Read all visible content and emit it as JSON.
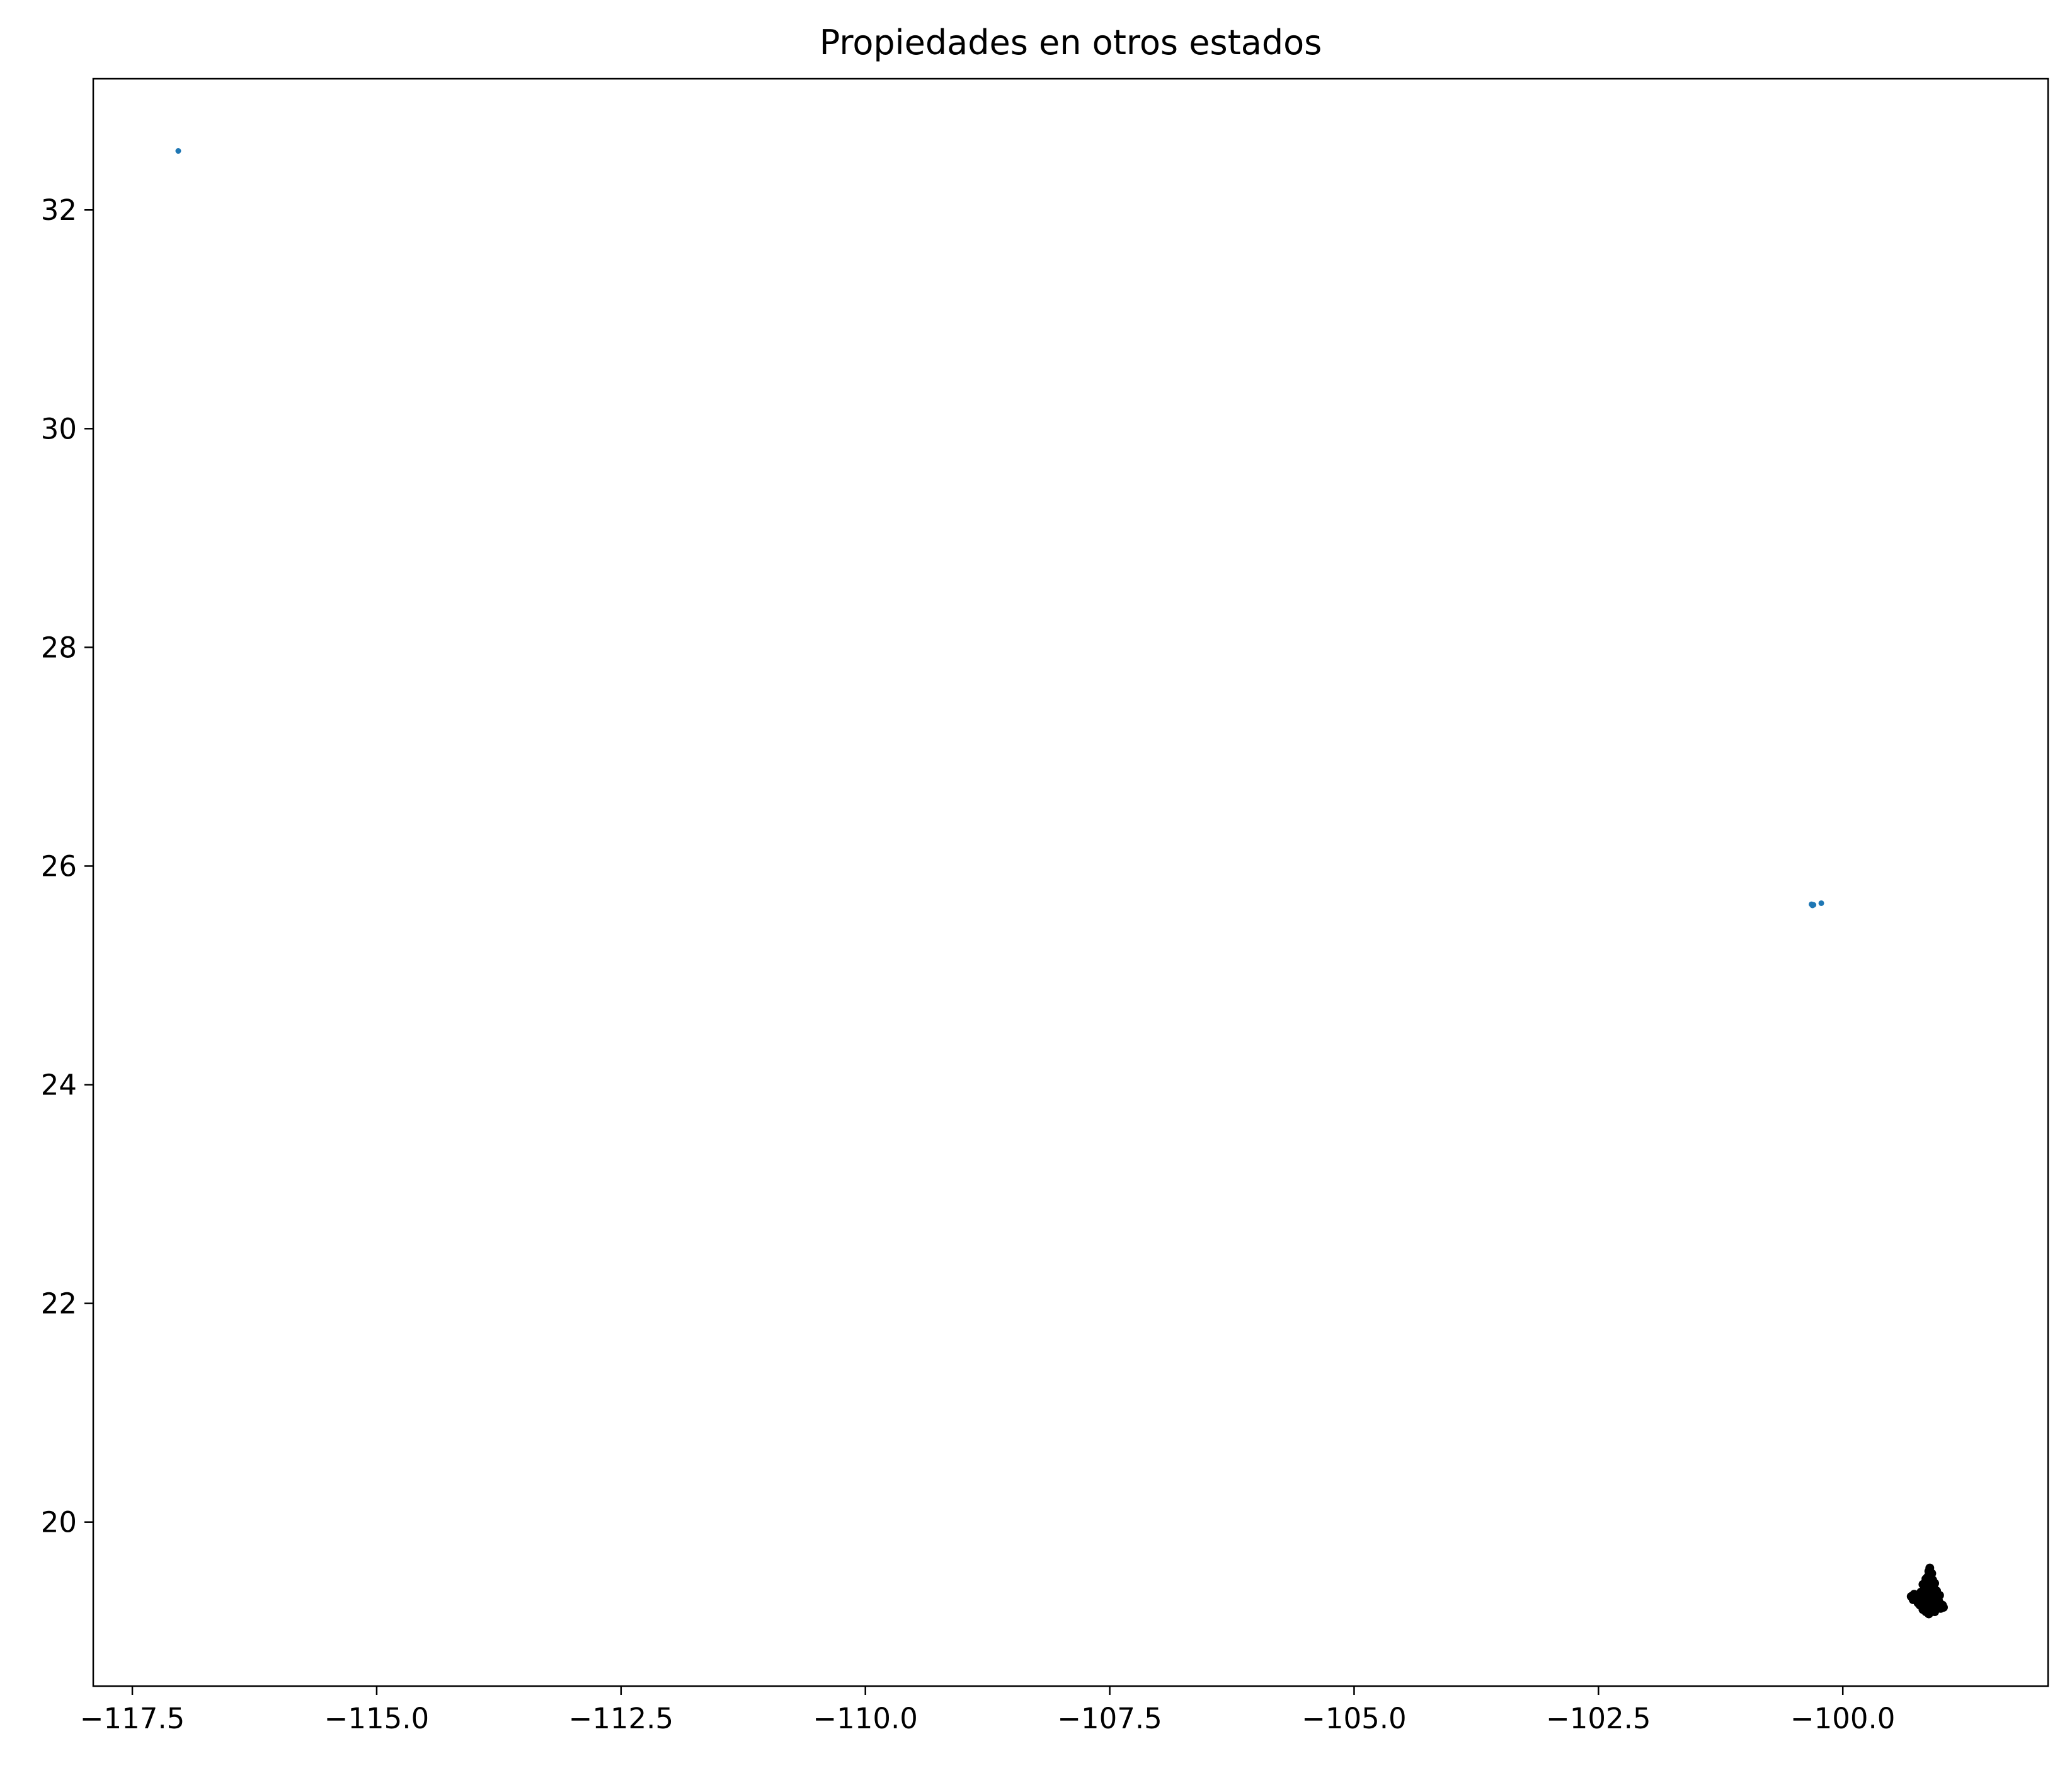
{
  "chart_data": {
    "type": "scatter",
    "title": "Propiedades en otros estados",
    "xlabel": "",
    "ylabel": "",
    "xlim": [
      -117.9,
      -97.9
    ],
    "ylim": [
      18.5,
      33.2
    ],
    "x_ticks": [
      -117.5,
      -115.0,
      -112.5,
      -110.0,
      -107.5,
      -105.0,
      -102.5,
      -100.0
    ],
    "x_tick_labels": [
      "−117.5",
      "−115.0",
      "−112.5",
      "−110.0",
      "−107.5",
      "−105.0",
      "−102.5",
      "−100.0"
    ],
    "y_ticks": [
      20,
      22,
      24,
      26,
      28,
      30,
      32
    ],
    "y_tick_labels": [
      "20",
      "22",
      "24",
      "26",
      "28",
      "30",
      "32"
    ],
    "grid": false,
    "series": [
      {
        "color": "#1f77b4",
        "points": [
          {
            "x": -117.03,
            "y": 32.54
          },
          {
            "x": -100.32,
            "y": 25.65
          },
          {
            "x": -100.31,
            "y": 25.64
          },
          {
            "x": -100.3,
            "y": 25.645
          },
          {
            "x": -100.22,
            "y": 25.66
          }
        ]
      },
      {
        "color": "#000000",
        "points": [
          {
            "x": -99.18,
            "y": 19.43
          },
          {
            "x": -99.16,
            "y": 19.4
          },
          {
            "x": -99.14,
            "y": 19.42
          },
          {
            "x": -99.13,
            "y": 19.45
          },
          {
            "x": -99.15,
            "y": 19.48
          },
          {
            "x": -99.13,
            "y": 19.5
          },
          {
            "x": -99.12,
            "y": 19.55
          },
          {
            "x": -99.11,
            "y": 19.58
          },
          {
            "x": -99.09,
            "y": 19.53
          },
          {
            "x": -99.08,
            "y": 19.47
          },
          {
            "x": -99.06,
            "y": 19.44
          },
          {
            "x": -99.1,
            "y": 19.39
          },
          {
            "x": -99.2,
            "y": 19.36
          },
          {
            "x": -99.22,
            "y": 19.33
          },
          {
            "x": -99.25,
            "y": 19.31
          },
          {
            "x": -99.27,
            "y": 19.34
          },
          {
            "x": -99.3,
            "y": 19.32
          },
          {
            "x": -99.28,
            "y": 19.29
          },
          {
            "x": -99.24,
            "y": 19.28
          },
          {
            "x": -99.2,
            "y": 19.3
          },
          {
            "x": -99.17,
            "y": 19.33
          },
          {
            "x": -99.15,
            "y": 19.36
          },
          {
            "x": -99.12,
            "y": 19.37
          },
          {
            "x": -99.1,
            "y": 19.35
          },
          {
            "x": -99.08,
            "y": 19.34
          },
          {
            "x": -99.05,
            "y": 19.33
          },
          {
            "x": -99.03,
            "y": 19.31
          },
          {
            "x": -99.01,
            "y": 19.33
          },
          {
            "x": -99.02,
            "y": 19.28
          },
          {
            "x": -99.0,
            "y": 19.25
          },
          {
            "x": -98.98,
            "y": 19.24
          },
          {
            "x": -98.97,
            "y": 19.22
          },
          {
            "x": -99.0,
            "y": 19.21
          },
          {
            "x": -99.04,
            "y": 19.23
          },
          {
            "x": -99.07,
            "y": 19.26
          },
          {
            "x": -99.09,
            "y": 19.29
          },
          {
            "x": -99.12,
            "y": 19.27
          },
          {
            "x": -99.14,
            "y": 19.25
          },
          {
            "x": -99.16,
            "y": 19.22
          },
          {
            "x": -99.18,
            "y": 19.2
          },
          {
            "x": -99.15,
            "y": 19.18
          },
          {
            "x": -99.12,
            "y": 19.16
          },
          {
            "x": -99.1,
            "y": 19.19
          },
          {
            "x": -99.08,
            "y": 19.21
          },
          {
            "x": -99.06,
            "y": 19.18
          },
          {
            "x": -99.13,
            "y": 19.31
          },
          {
            "x": -99.11,
            "y": 19.32
          },
          {
            "x": -99.16,
            "y": 19.29
          },
          {
            "x": -99.19,
            "y": 19.26
          },
          {
            "x": -99.21,
            "y": 19.24
          },
          {
            "x": -99.23,
            "y": 19.26
          },
          {
            "x": -99.14,
            "y": 19.46
          },
          {
            "x": -99.12,
            "y": 19.41
          },
          {
            "x": -99.17,
            "y": 19.38
          },
          {
            "x": -99.07,
            "y": 19.4
          },
          {
            "x": -99.04,
            "y": 19.37
          },
          {
            "x": -99.02,
            "y": 19.26
          },
          {
            "x": -99.11,
            "y": 19.24
          },
          {
            "x": -99.05,
            "y": 19.29
          },
          {
            "x": -99.09,
            "y": 19.45
          }
        ]
      }
    ]
  }
}
